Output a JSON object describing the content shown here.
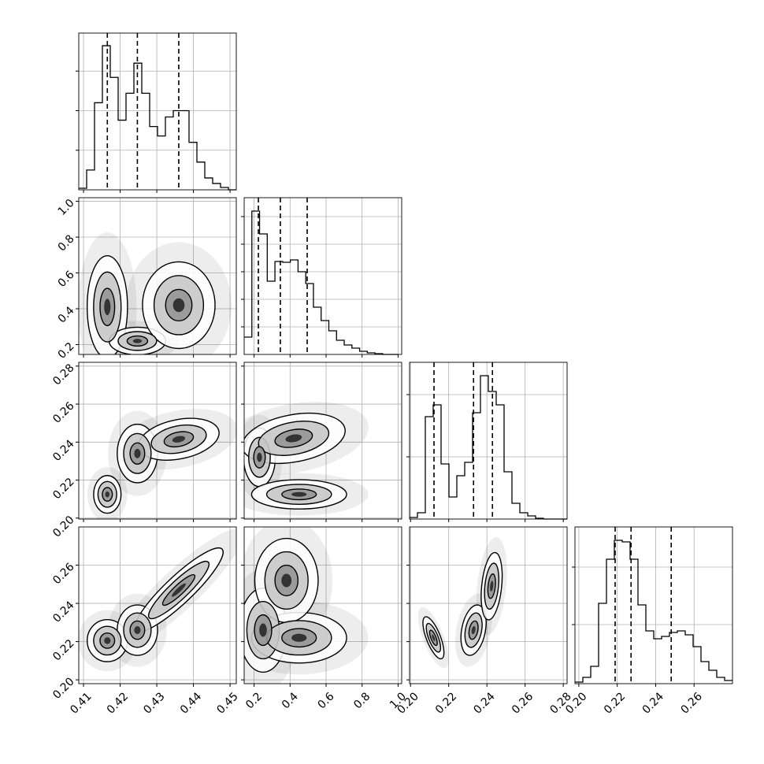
{
  "chart_data": {
    "type": "corner",
    "parameters": [
      {
        "lim": [
          0.4087,
          0.4517
        ],
        "ticks": [
          0.41,
          0.42,
          0.43,
          0.44,
          0.45
        ],
        "quantiles": [
          0.4165,
          0.4247,
          0.436
        ],
        "bins": [
          0.4087,
          0.41085,
          0.413,
          0.41515,
          0.4173,
          0.41945,
          0.4216,
          0.42375,
          0.4259,
          0.42805,
          0.4302,
          0.43235,
          0.4345,
          0.43665,
          0.4388,
          0.44095,
          0.4431,
          0.44525,
          0.4474,
          0.44955,
          0.4517
        ],
        "counts": [
          2,
          25,
          110,
          182,
          142,
          88,
          122,
          160,
          122,
          80,
          68,
          92,
          100,
          100,
          60,
          35,
          15,
          8,
          3,
          0
        ],
        "hist_ylim": [
          0,
          198
        ],
        "hist_yticks": [
          50,
          100,
          150
        ]
      },
      {
        "lim": [
          0.145,
          1.02
        ],
        "ticks": [
          0.2,
          0.4,
          0.6,
          0.8,
          {
            "value": 1,
            "label": "1.0"
          }
        ],
        "quantiles": [
          0.224,
          0.346,
          0.495
        ],
        "bins": [
          0.145,
          0.18775,
          0.2305,
          0.27325,
          0.316,
          0.35875,
          0.4015,
          0.44425,
          0.487,
          0.52975,
          0.5725,
          0.61525,
          0.658,
          0.70075,
          0.7435,
          0.78625,
          0.829,
          0.87175,
          0.9145,
          0.95725,
          1.0
        ],
        "counts": [
          22,
          182,
          153,
          93,
          118,
          117,
          120,
          105,
          90,
          60,
          43,
          30,
          18,
          12,
          8,
          4,
          2,
          1,
          0,
          0
        ],
        "hist_ylim": [
          0,
          199
        ],
        "hist_yticks": [
          35,
          70,
          105,
          140,
          175
        ]
      },
      {
        "lim": [
          0.1995,
          0.282
        ],
        "ticks": [
          {
            "value": 0.2,
            "label": "0.20"
          },
          {
            "value": 0.22,
            "label": "0.22"
          },
          {
            "value": 0.24,
            "label": "0.24"
          },
          {
            "value": 0.26,
            "label": "0.26"
          },
          {
            "value": 0.28,
            "label": "0.28"
          }
        ],
        "quantiles": [
          0.2123,
          0.233,
          0.2429
        ],
        "bins": [
          0.1995,
          0.203625,
          0.20775,
          0.211875,
          0.216,
          0.220125,
          0.22425,
          0.228375,
          0.2325,
          0.236625,
          0.24075,
          0.244875,
          0.249,
          0.253125,
          0.25725,
          0.261375,
          0.2655,
          0.269625,
          0.27375,
          0.277875,
          0.282
        ],
        "counts": [
          2,
          8,
          130,
          145,
          70,
          28,
          55,
          72,
          135,
          182,
          162,
          145,
          60,
          20,
          8,
          4,
          1,
          0,
          0,
          0
        ],
        "hist_ylim": [
          0,
          199
        ],
        "hist_yticks": [
          79,
          158
        ]
      },
      {
        "lim": [
          0.198,
          0.28
        ],
        "ticks": [
          {
            "value": 0.2,
            "label": "0.20"
          },
          {
            "value": 0.22,
            "label": "0.22"
          },
          {
            "value": 0.24,
            "label": "0.24"
          },
          {
            "value": 0.26,
            "label": "0.26"
          }
        ],
        "quantiles": [
          0.2189,
          0.2272,
          0.2481
        ],
        "bins": [
          0.198,
          0.2021,
          0.2062,
          0.2103,
          0.2144,
          0.2185,
          0.2226,
          0.2267,
          0.2308,
          0.2349,
          0.239,
          0.2431,
          0.2472,
          0.2513,
          0.2554,
          0.2595,
          0.2636,
          0.2677,
          0.2718,
          0.2759,
          0.28
        ],
        "counts": [
          2,
          8,
          22,
          102,
          158,
          182,
          180,
          158,
          100,
          67,
          57,
          60,
          65,
          67,
          62,
          47,
          28,
          17,
          8,
          4
        ],
        "hist_ylim": [
          0,
          199
        ],
        "hist_yticks": [
          75,
          148
        ]
      }
    ],
    "pairs": [
      [
        [
          {
            "x": 0.4165,
            "y": 0.41,
            "sx": 0.0025,
            "sy": 0.13,
            "r": 0
          },
          {
            "x": 0.4247,
            "y": 0.22,
            "sx": 0.0035,
            "sy": 0.035,
            "r": 0
          },
          {
            "x": 0.436,
            "y": 0.42,
            "sx": 0.0045,
            "sy": 0.11,
            "r": 0
          }
        ]
      ],
      [
        [
          {
            "x": 0.4165,
            "y": 0.2125,
            "sx": 0.0017,
            "sy": 0.0045,
            "r": 0
          },
          {
            "x": 0.4247,
            "y": 0.234,
            "sx": 0.0025,
            "sy": 0.007,
            "r": 0
          },
          {
            "x": 0.436,
            "y": 0.2415,
            "sx": 0.005,
            "sy": 0.005,
            "r": 0.3
          }
        ],
        [
          {
            "x": 0.23,
            "y": 0.232,
            "sx": 0.04,
            "sy": 0.007,
            "r": 0
          },
          {
            "x": 0.42,
            "y": 0.242,
            "sx": 0.13,
            "sy": 0.006,
            "r": 0.3
          },
          {
            "x": 0.45,
            "y": 0.2125,
            "sx": 0.12,
            "sy": 0.0035,
            "r": 0
          }
        ]
      ],
      [
        [
          {
            "x": 0.4165,
            "y": 0.2205,
            "sx": 0.0025,
            "sy": 0.005,
            "r": 0
          },
          {
            "x": 0.4247,
            "y": 0.226,
            "sx": 0.0025,
            "sy": 0.006,
            "r": 0
          },
          {
            "x": 0.436,
            "y": 0.247,
            "sx": 0.0055,
            "sy": 0.01,
            "r": 0.9
          }
        ],
        [
          {
            "x": 0.25,
            "y": 0.226,
            "sx": 0.06,
            "sy": 0.01,
            "r": 0
          },
          {
            "x": 0.45,
            "y": 0.222,
            "sx": 0.12,
            "sy": 0.006,
            "r": 0
          },
          {
            "x": 0.38,
            "y": 0.252,
            "sx": 0.08,
            "sy": 0.01,
            "r": 0
          }
        ],
        [
          {
            "x": 0.212,
            "y": 0.222,
            "sx": 0.0025,
            "sy": 0.005,
            "r": -0.7
          },
          {
            "x": 0.233,
            "y": 0.226,
            "sx": 0.003,
            "sy": 0.006,
            "r": 0.3
          },
          {
            "x": 0.2425,
            "y": 0.249,
            "sx": 0.0025,
            "sy": 0.008,
            "r": 0.3
          }
        ]
      ]
    ]
  }
}
